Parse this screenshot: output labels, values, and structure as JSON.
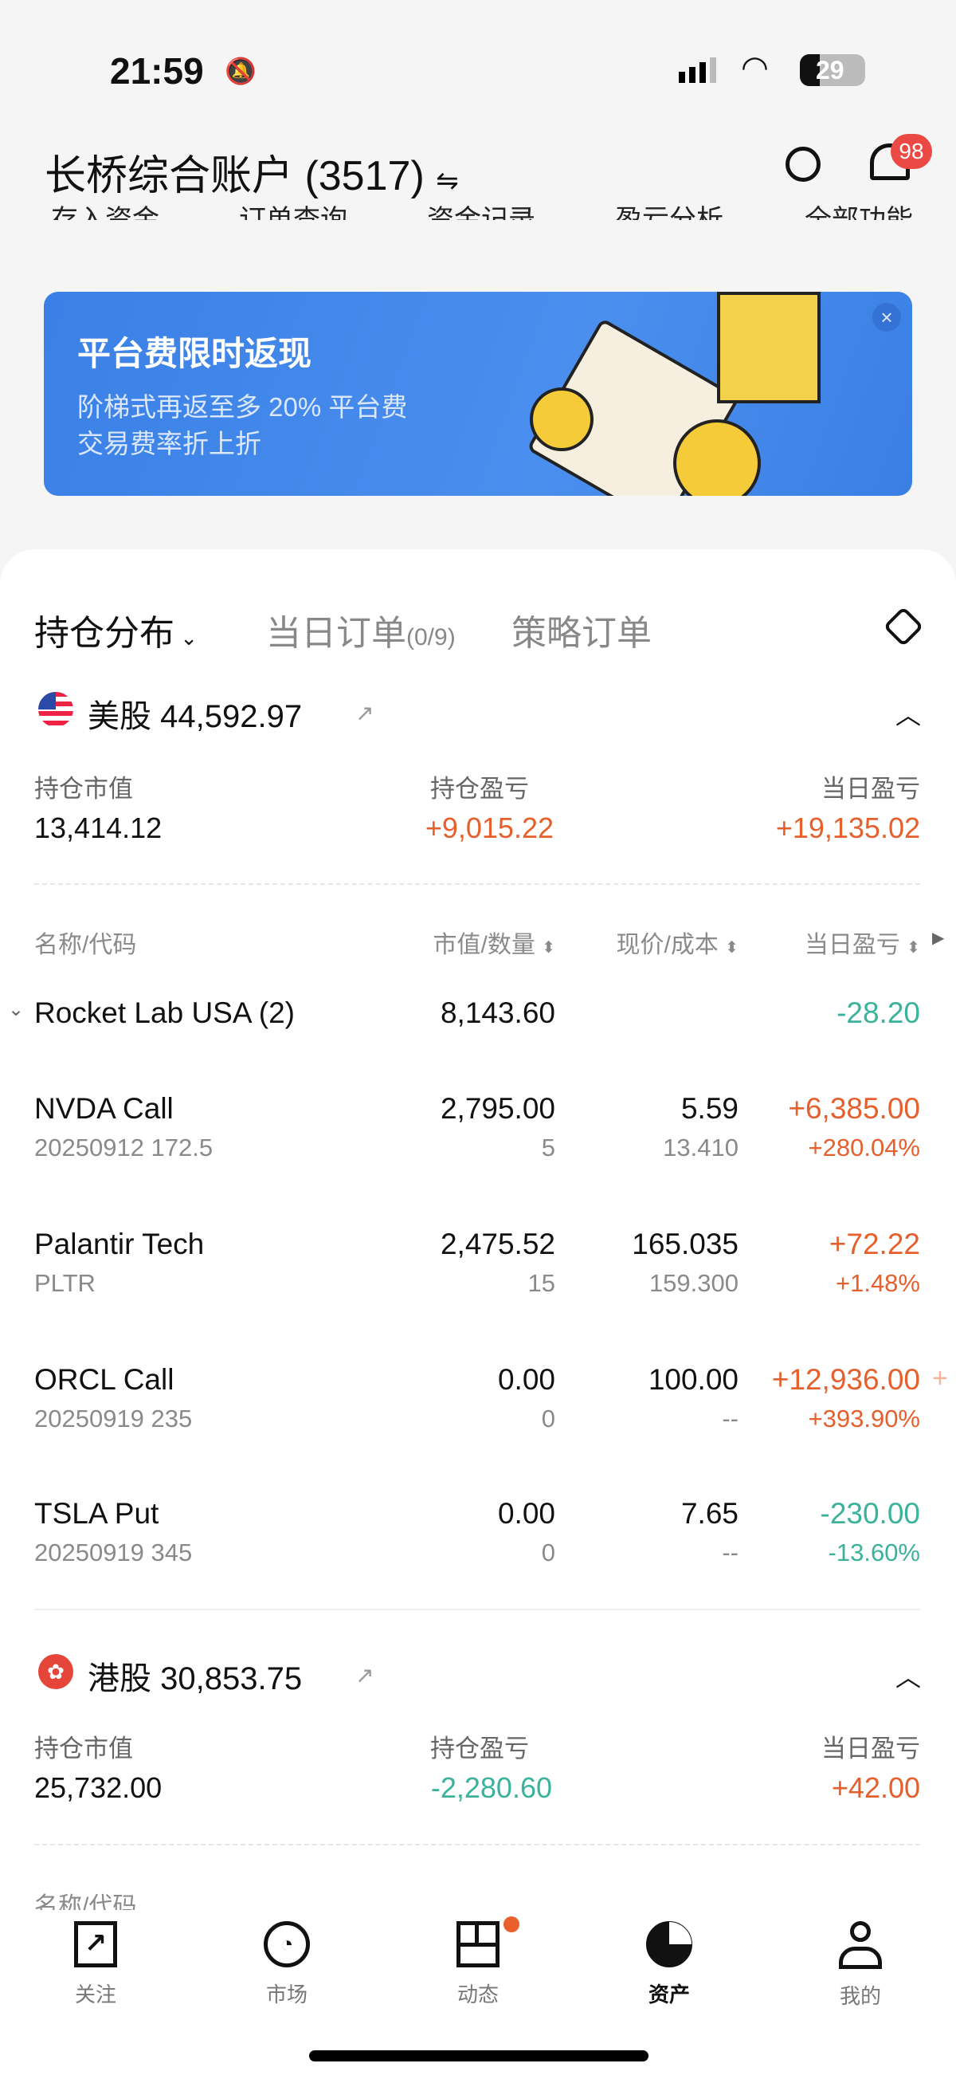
{
  "status_bar": {
    "time": "21:59",
    "battery": "29"
  },
  "header": {
    "title": "长桥综合账户 (3517)",
    "switch_icon": "⇋",
    "notification_count": "98"
  },
  "quick_menu": [
    "存入资金",
    "订单查询",
    "资金记录",
    "盈亏分析",
    "全部功能"
  ],
  "banner": {
    "title": "平台费限时返现",
    "line1": "阶梯式再返至多 20% 平台费",
    "line2": "交易费率折上折"
  },
  "tabs": [
    {
      "label": "持仓分布",
      "active": true
    },
    {
      "label": "当日订单",
      "count": "(0/9)"
    },
    {
      "label": "策略订单"
    }
  ],
  "us": {
    "label": "美股 44,592.97",
    "summary": [
      {
        "label": "持仓市值",
        "value": "13,414.12"
      },
      {
        "label": "持仓盈亏",
        "value": "+9,015.22"
      },
      {
        "label": "当日盈亏",
        "value": "+19,135.02"
      }
    ]
  },
  "columns": [
    "名称/代码",
    "市值/数量",
    "现价/成本",
    "当日盈亏"
  ],
  "positions": [
    {
      "name": "Rocket Lab USA (2)",
      "code": "",
      "mv": "8,143.60",
      "qty": "",
      "price": "",
      "cost": "",
      "pl": "-28.20",
      "pct": "",
      "dir": "dn"
    },
    {
      "name": "NVDA Call",
      "code": "20250912 172.5",
      "mv": "2,795.00",
      "qty": "5",
      "price": "5.59",
      "cost": "13.410",
      "pl": "+6,385.00",
      "pct": "+280.04%",
      "dir": "up"
    },
    {
      "name": "Palantir Tech",
      "code": "PLTR",
      "mv": "2,475.52",
      "qty": "15",
      "price": "165.035",
      "cost": "159.300",
      "pl": "+72.22",
      "pct": "+1.48%",
      "dir": "up"
    },
    {
      "name": "ORCL Call",
      "code": "20250919 235",
      "mv": "0.00",
      "qty": "0",
      "price": "100.00",
      "cost": "--",
      "pl": "+12,936.00",
      "pct": "+393.90%",
      "dir": "up"
    },
    {
      "name": "TSLA Put",
      "code": "20250919 345",
      "mv": "0.00",
      "qty": "0",
      "price": "7.65",
      "cost": "--",
      "pl": "-230.00",
      "pct": "-13.60%",
      "dir": "dn"
    }
  ],
  "hk": {
    "label": "港股 30,853.75",
    "summary": [
      {
        "label": "持仓市值",
        "value": "25,732.00"
      },
      {
        "label": "持仓盈亏",
        "value": "-2,280.60"
      },
      {
        "label": "当日盈亏",
        "value": "+42.00"
      }
    ]
  },
  "tabbar": [
    {
      "label": "关注",
      "icon": "watchlist-icon"
    },
    {
      "label": "市场",
      "icon": "market-icon"
    },
    {
      "label": "动态",
      "icon": "feed-icon"
    },
    {
      "label": "资产",
      "icon": "assets-icon",
      "active": true
    },
    {
      "label": "我的",
      "icon": "profile-icon"
    }
  ],
  "colors": {
    "up": "#e5602d",
    "down": "#3bb29b",
    "banner": "#3a80e6"
  }
}
